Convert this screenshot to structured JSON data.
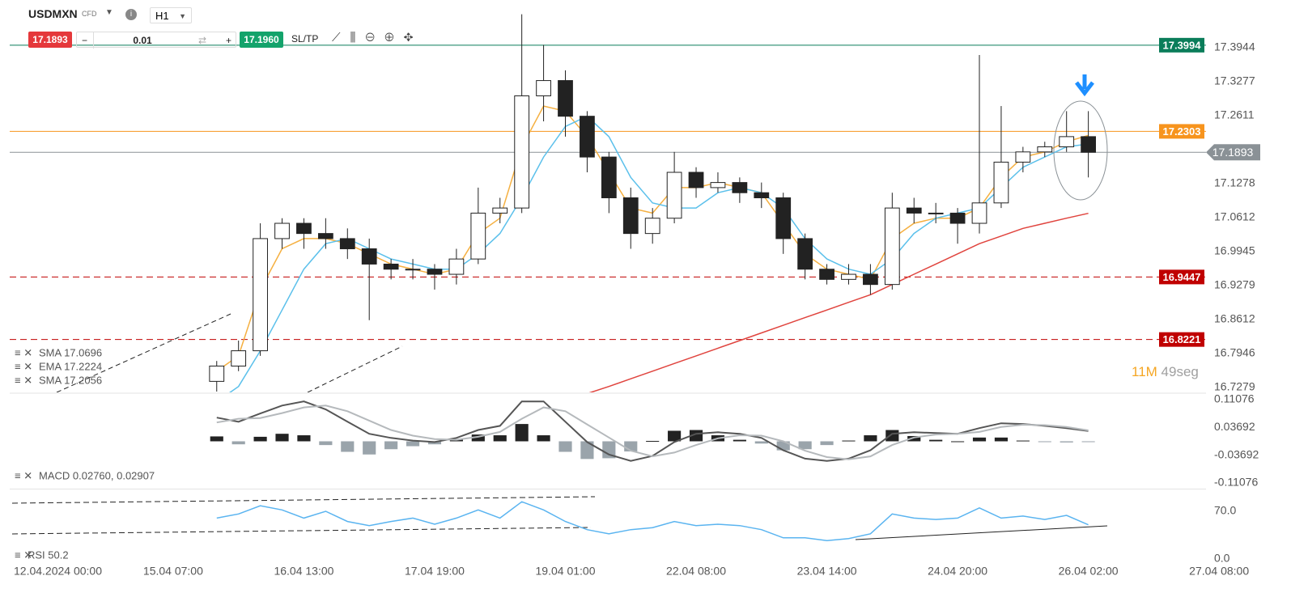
{
  "header": {
    "symbol": "USDMXN",
    "badge": "CFD",
    "timeframe": "H1"
  },
  "trade_bar": {
    "sell": "17.1893",
    "lot": "0.01",
    "buy": "17.1960",
    "sltp": "SL/TP"
  },
  "countdown": {
    "minutes": "11M",
    "seconds": "49seg"
  },
  "chart_data": [
    {
      "type": "candlestick",
      "up_color": "#ffffff",
      "down_color": "#222222",
      "x": [
        40,
        45,
        50,
        55,
        60,
        65,
        70,
        75,
        80,
        85,
        90,
        95,
        100,
        105,
        110,
        115,
        120,
        125,
        130,
        135,
        140,
        145,
        150,
        155,
        160,
        165,
        170,
        175,
        180,
        185,
        190,
        195,
        200,
        205,
        210,
        215,
        220,
        225,
        230,
        235,
        240
      ],
      "open": [
        16.74,
        16.77,
        16.8,
        17.02,
        17.05,
        17.03,
        17.02,
        17.0,
        16.97,
        16.96,
        16.96,
        16.95,
        16.98,
        17.07,
        17.08,
        17.3,
        17.33,
        17.26,
        17.18,
        17.1,
        17.03,
        17.06,
        17.15,
        17.12,
        17.13,
        17.11,
        17.1,
        17.02,
        16.96,
        16.94,
        16.95,
        16.93,
        17.08,
        17.07,
        17.07,
        17.05,
        17.09,
        17.17,
        17.19,
        17.2,
        17.22
      ],
      "high": [
        16.78,
        16.82,
        17.05,
        17.06,
        17.06,
        17.06,
        17.04,
        17.02,
        16.98,
        16.98,
        16.97,
        17.0,
        17.12,
        17.1,
        17.46,
        17.4,
        17.35,
        17.27,
        17.19,
        17.12,
        17.08,
        17.19,
        17.16,
        17.15,
        17.14,
        17.13,
        17.11,
        17.03,
        16.97,
        16.97,
        16.97,
        17.11,
        17.1,
        17.09,
        17.08,
        17.38,
        17.28,
        17.2,
        17.21,
        17.27,
        17.27
      ],
      "low": [
        16.72,
        16.76,
        16.79,
        17.0,
        17.0,
        17.0,
        16.98,
        16.86,
        16.94,
        16.94,
        16.92,
        16.93,
        16.97,
        17.05,
        17.07,
        17.25,
        17.22,
        17.15,
        17.07,
        17.0,
        17.01,
        17.05,
        17.1,
        17.11,
        17.09,
        17.08,
        16.99,
        16.94,
        16.93,
        16.93,
        16.91,
        16.92,
        17.05,
        17.05,
        17.01,
        17.03,
        17.08,
        17.15,
        17.18,
        17.19,
        17.14
      ],
      "close": [
        16.77,
        16.8,
        17.02,
        17.05,
        17.03,
        17.02,
        17.0,
        16.97,
        16.96,
        16.96,
        16.95,
        16.98,
        17.07,
        17.08,
        17.3,
        17.33,
        17.26,
        17.18,
        17.1,
        17.03,
        17.06,
        17.15,
        17.12,
        17.13,
        17.11,
        17.1,
        17.02,
        16.96,
        16.94,
        16.95,
        16.93,
        17.08,
        17.07,
        17.07,
        17.05,
        17.09,
        17.17,
        17.19,
        17.2,
        17.22,
        17.1893
      ],
      "series": [
        {
          "name": "SMA 17.0696",
          "color": "#e0443e",
          "values": [
            null,
            null,
            null,
            null,
            null,
            null,
            null,
            null,
            null,
            null,
            null,
            null,
            null,
            null,
            null,
            null,
            null,
            16.716,
            16.73,
            16.745,
            16.76,
            16.775,
            16.79,
            16.805,
            16.82,
            16.835,
            16.85,
            16.865,
            16.88,
            16.895,
            16.91,
            16.93,
            16.95,
            16.97,
            16.99,
            17.01,
            17.025,
            17.04,
            17.05,
            17.06,
            17.0696
          ]
        },
        {
          "name": "EMA 17.2224",
          "color": "#f5b041",
          "values": [
            16.76,
            16.79,
            16.92,
            17.0,
            17.02,
            17.02,
            17.01,
            16.99,
            16.97,
            16.96,
            16.95,
            16.96,
            17.03,
            17.06,
            17.2,
            17.28,
            17.27,
            17.22,
            17.15,
            17.08,
            17.07,
            17.12,
            17.12,
            17.13,
            17.12,
            17.11,
            17.05,
            16.99,
            16.96,
            16.95,
            16.94,
            17.02,
            17.05,
            17.06,
            17.06,
            17.08,
            17.14,
            17.18,
            17.19,
            17.21,
            17.2224
          ]
        },
        {
          "name": "SMA 17.2056",
          "color": "#5bc0eb",
          "values": [
            16.7,
            16.73,
            16.8,
            16.88,
            16.96,
            17.01,
            17.02,
            17.0,
            16.98,
            16.97,
            16.96,
            16.96,
            16.99,
            17.03,
            17.1,
            17.18,
            17.24,
            17.26,
            17.22,
            17.14,
            17.09,
            17.08,
            17.08,
            17.11,
            17.12,
            17.11,
            17.08,
            17.02,
            16.98,
            16.96,
            16.95,
            16.98,
            17.03,
            17.06,
            17.07,
            17.08,
            17.12,
            17.16,
            17.18,
            17.2,
            17.2056
          ]
        }
      ],
      "price_lines": [
        {
          "value": 17.3994,
          "color": "#0a7d5a",
          "style": "solid"
        },
        {
          "value": 17.2303,
          "color": "#f7941d",
          "style": "solid"
        },
        {
          "value": 17.1893,
          "color": "#8a9196",
          "style": "pointer"
        },
        {
          "value": 16.9447,
          "color": "#c00000",
          "style": "dashed"
        },
        {
          "value": 16.8221,
          "color": "#c00000",
          "style": "dashed"
        }
      ],
      "xlim": [
        -7.5,
        267
      ],
      "xticks": [
        {
          "value": 0,
          "label": "12.04.2024 00:00"
        },
        {
          "value": 30,
          "label": "15.04 07:00"
        },
        {
          "value": 60,
          "label": "16.04 13:00"
        },
        {
          "value": 90,
          "label": "17.04 19:00"
        },
        {
          "value": 120,
          "label": "19.04 01:00"
        },
        {
          "value": 150,
          "label": "22.04 08:00"
        },
        {
          "value": 180,
          "label": "23.04 14:00"
        },
        {
          "value": 210,
          "label": "24.04 20:00"
        },
        {
          "value": 240,
          "label": "26.04 02:00"
        },
        {
          "value": 270,
          "label": "27.04 08:00"
        }
      ],
      "ylim": [
        16.7184,
        17.4642
      ],
      "yticks": [
        17.3944,
        17.3277,
        17.2611,
        17.1278,
        17.0612,
        16.9945,
        16.9279,
        16.8612,
        16.7946,
        16.7279
      ]
    },
    {
      "type": "macd",
      "title": "MACD 0.02760, 0.02907",
      "ylim": [
        -0.1237,
        0.1258
      ],
      "yticks": [
        0.11076,
        0.03692,
        -0.03692,
        -0.11076
      ],
      "histogram": [
        0.013,
        -0.008,
        0.012,
        0.02,
        0.016,
        -0.01,
        -0.028,
        -0.035,
        -0.021,
        -0.013,
        -0.008,
        0.005,
        0.018,
        0.016,
        0.046,
        0.016,
        -0.028,
        -0.047,
        -0.045,
        -0.027,
        0.001,
        0.028,
        0.03,
        0.016,
        0.004,
        -0.006,
        -0.024,
        -0.021,
        -0.01,
        0.002,
        0.016,
        0.03,
        0.014,
        0.004,
        0.0,
        0.01,
        0.01,
        0.002,
        -0.002,
        -0.003,
        -0.0015
      ],
      "pos_color": "#222222",
      "neg_color": "#9aa4ab",
      "series": [
        {
          "color": "#555555",
          "values": [
            0.063,
            0.052,
            0.074,
            0.095,
            0.106,
            0.085,
            0.052,
            0.02,
            0.009,
            0.002,
            -0.002,
            0.009,
            0.03,
            0.041,
            0.106,
            0.106,
            0.052,
            -0.002,
            -0.035,
            -0.052,
            -0.039,
            -0.002,
            0.02,
            0.024,
            0.02,
            0.009,
            -0.024,
            -0.046,
            -0.052,
            -0.046,
            -0.024,
            0.02,
            0.024,
            0.022,
            0.02,
            0.035,
            0.048,
            0.046,
            0.041,
            0.035,
            0.0276
          ]
        },
        {
          "color": "#b5b9bc",
          "values": [
            0.05,
            0.06,
            0.062,
            0.075,
            0.09,
            0.095,
            0.08,
            0.055,
            0.03,
            0.015,
            0.006,
            0.004,
            0.012,
            0.025,
            0.06,
            0.09,
            0.08,
            0.045,
            0.01,
            -0.025,
            -0.04,
            -0.03,
            -0.01,
            0.008,
            0.016,
            0.015,
            0.0,
            -0.025,
            -0.042,
            -0.048,
            -0.04,
            -0.01,
            0.01,
            0.018,
            0.02,
            0.025,
            0.038,
            0.044,
            0.043,
            0.038,
            0.02907
          ]
        }
      ]
    },
    {
      "type": "line",
      "title": "RSI 50.2",
      "ylim": [
        -10.7,
        100.8
      ],
      "yticks": [
        {
          "value": 70,
          "label": "70.0"
        },
        {
          "value": 0,
          "label": "0.0"
        }
      ],
      "series": [
        {
          "color": "#5ab4f0",
          "values": [
            60,
            66,
            78,
            72,
            60,
            70,
            55,
            49,
            55,
            60,
            51,
            60,
            72,
            60,
            84,
            72,
            55,
            43,
            37,
            43,
            46,
            55,
            49,
            51,
            49,
            43,
            31,
            31,
            27,
            30,
            37,
            66,
            60,
            58,
            60,
            75,
            60,
            63,
            58,
            64,
            50.2
          ]
        }
      ]
    }
  ]
}
